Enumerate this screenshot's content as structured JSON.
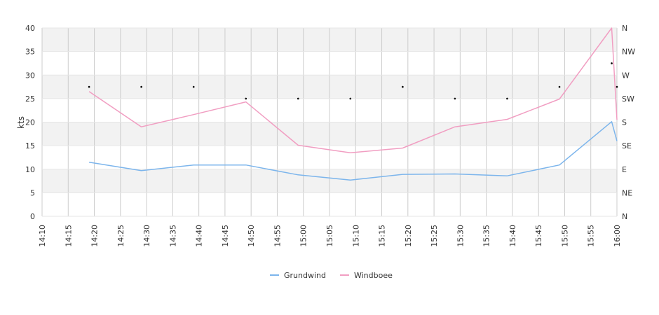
{
  "chart_data": {
    "type": "line",
    "ylabel": "kts",
    "ylim": [
      0,
      40
    ],
    "y_ticks": [
      0,
      5,
      10,
      15,
      20,
      25,
      30,
      35,
      40
    ],
    "x_ticks": [
      "14:10",
      "14:15",
      "14:20",
      "14:25",
      "14:30",
      "14:35",
      "14:40",
      "14:45",
      "14:50",
      "14:55",
      "15:00",
      "15:05",
      "15:10",
      "15:15",
      "15:20",
      "15:25",
      "15:30",
      "15:35",
      "15:40",
      "15:45",
      "15:50",
      "15:55",
      "16:00"
    ],
    "x_range": [
      "14:10",
      "16:00"
    ],
    "direction_ticks": [
      "N",
      "NE",
      "E",
      "SE",
      "S",
      "SW",
      "W",
      "NW",
      "N"
    ],
    "grid": true,
    "alternating_bands": true,
    "legend_position": "bottom-center",
    "series": [
      {
        "name": "Grundwind",
        "color": "#7cb5ec",
        "x": [
          "14:19",
          "14:29",
          "14:39",
          "14:49",
          "14:59",
          "15:09",
          "15:19",
          "15:29",
          "15:39",
          "15:49",
          "15:59",
          "16:00"
        ],
        "values": [
          11.5,
          9.7,
          10.9,
          10.9,
          8.8,
          7.7,
          8.9,
          9.0,
          8.6,
          10.9,
          20.1,
          16.0
        ]
      },
      {
        "name": "Windboee",
        "color": "#f19ec2",
        "x": [
          "14:19",
          "14:29",
          "14:39",
          "14:49",
          "14:59",
          "15:09",
          "15:19",
          "15:29",
          "15:39",
          "15:49",
          "15:59",
          "16:00"
        ],
        "values": [
          26.5,
          19.0,
          21.6,
          24.3,
          15.1,
          13.5,
          14.5,
          19.0,
          20.6,
          24.9,
          40.0,
          20.5
        ]
      }
    ],
    "direction_markers": {
      "x": [
        "14:19",
        "14:29",
        "14:39",
        "14:49",
        "14:59",
        "15:09",
        "15:19",
        "15:29",
        "15:39",
        "15:49",
        "15:59",
        "16:00"
      ],
      "values": [
        27.5,
        27.5,
        27.5,
        25.0,
        25.0,
        25.0,
        27.5,
        25.0,
        25.0,
        27.5,
        32.5,
        27.5
      ]
    }
  }
}
